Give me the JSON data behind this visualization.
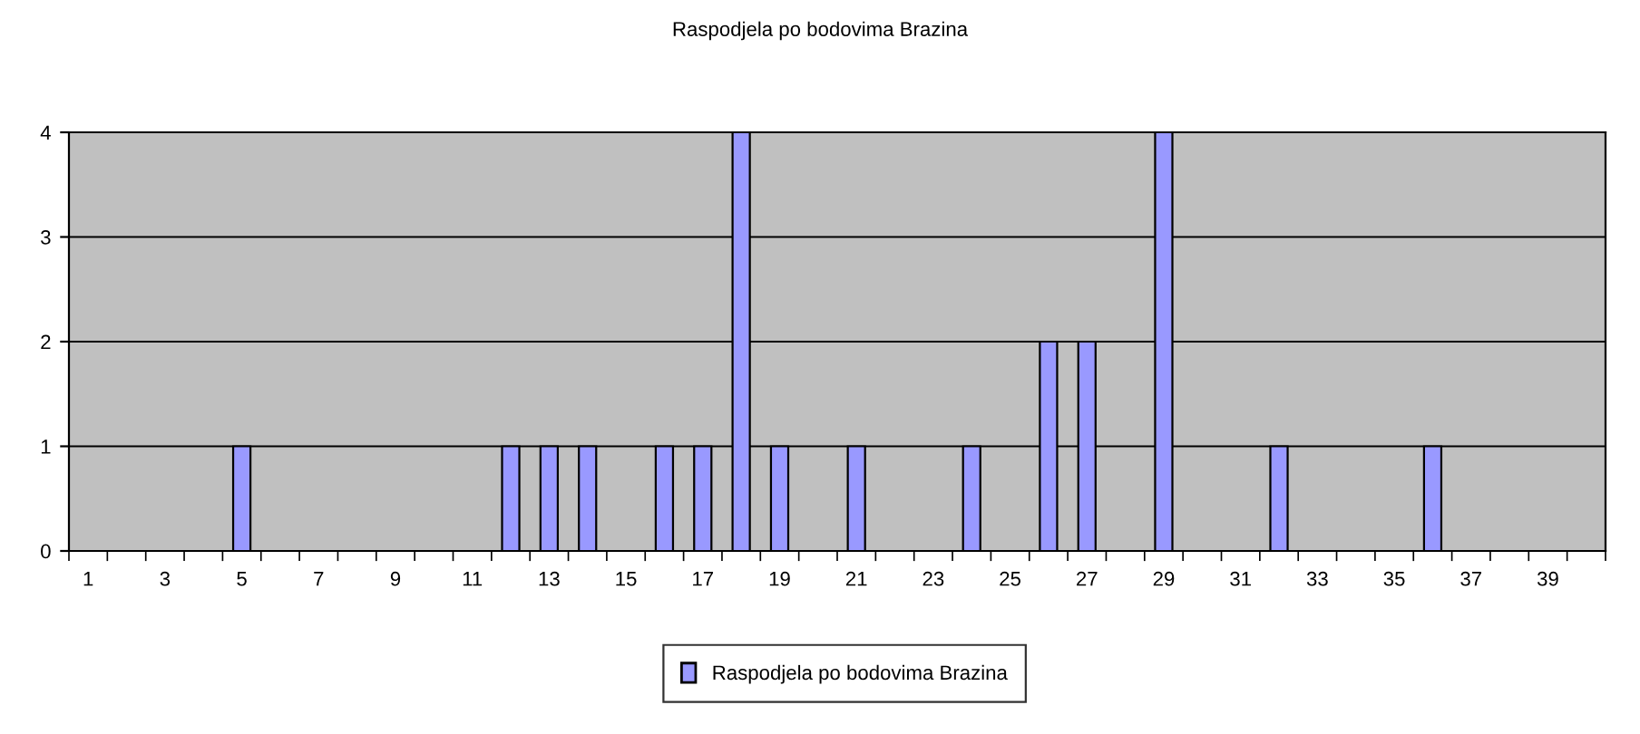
{
  "chart_data": {
    "type": "bar",
    "title": "Raspodjela po bodovima Brazina",
    "categories": [
      "1",
      null,
      "3",
      null,
      "5",
      null,
      "7",
      null,
      "9",
      null,
      "11",
      null,
      "13",
      null,
      "15",
      null,
      "17",
      null,
      "19",
      null,
      "21",
      null,
      "23",
      null,
      "25",
      null,
      "27",
      null,
      "29",
      null,
      "31",
      null,
      "33",
      null,
      "35",
      null,
      "37",
      null,
      "39",
      null
    ],
    "series": [
      {
        "name": "Raspodjela po bodovima Brazina",
        "color": "#9999ff",
        "values": [
          0,
          0,
          0,
          0,
          1,
          0,
          0,
          0,
          0,
          0,
          0,
          1,
          1,
          1,
          0,
          1,
          1,
          4,
          1,
          0,
          1,
          0,
          0,
          1,
          0,
          2,
          2,
          0,
          4,
          0,
          0,
          1,
          0,
          0,
          0,
          1,
          0,
          0,
          0,
          0
        ]
      }
    ],
    "ylim": [
      0,
      4
    ],
    "yticks": [
      0,
      1,
      2,
      3,
      4
    ],
    "grid": "y",
    "legend": "bottom"
  }
}
